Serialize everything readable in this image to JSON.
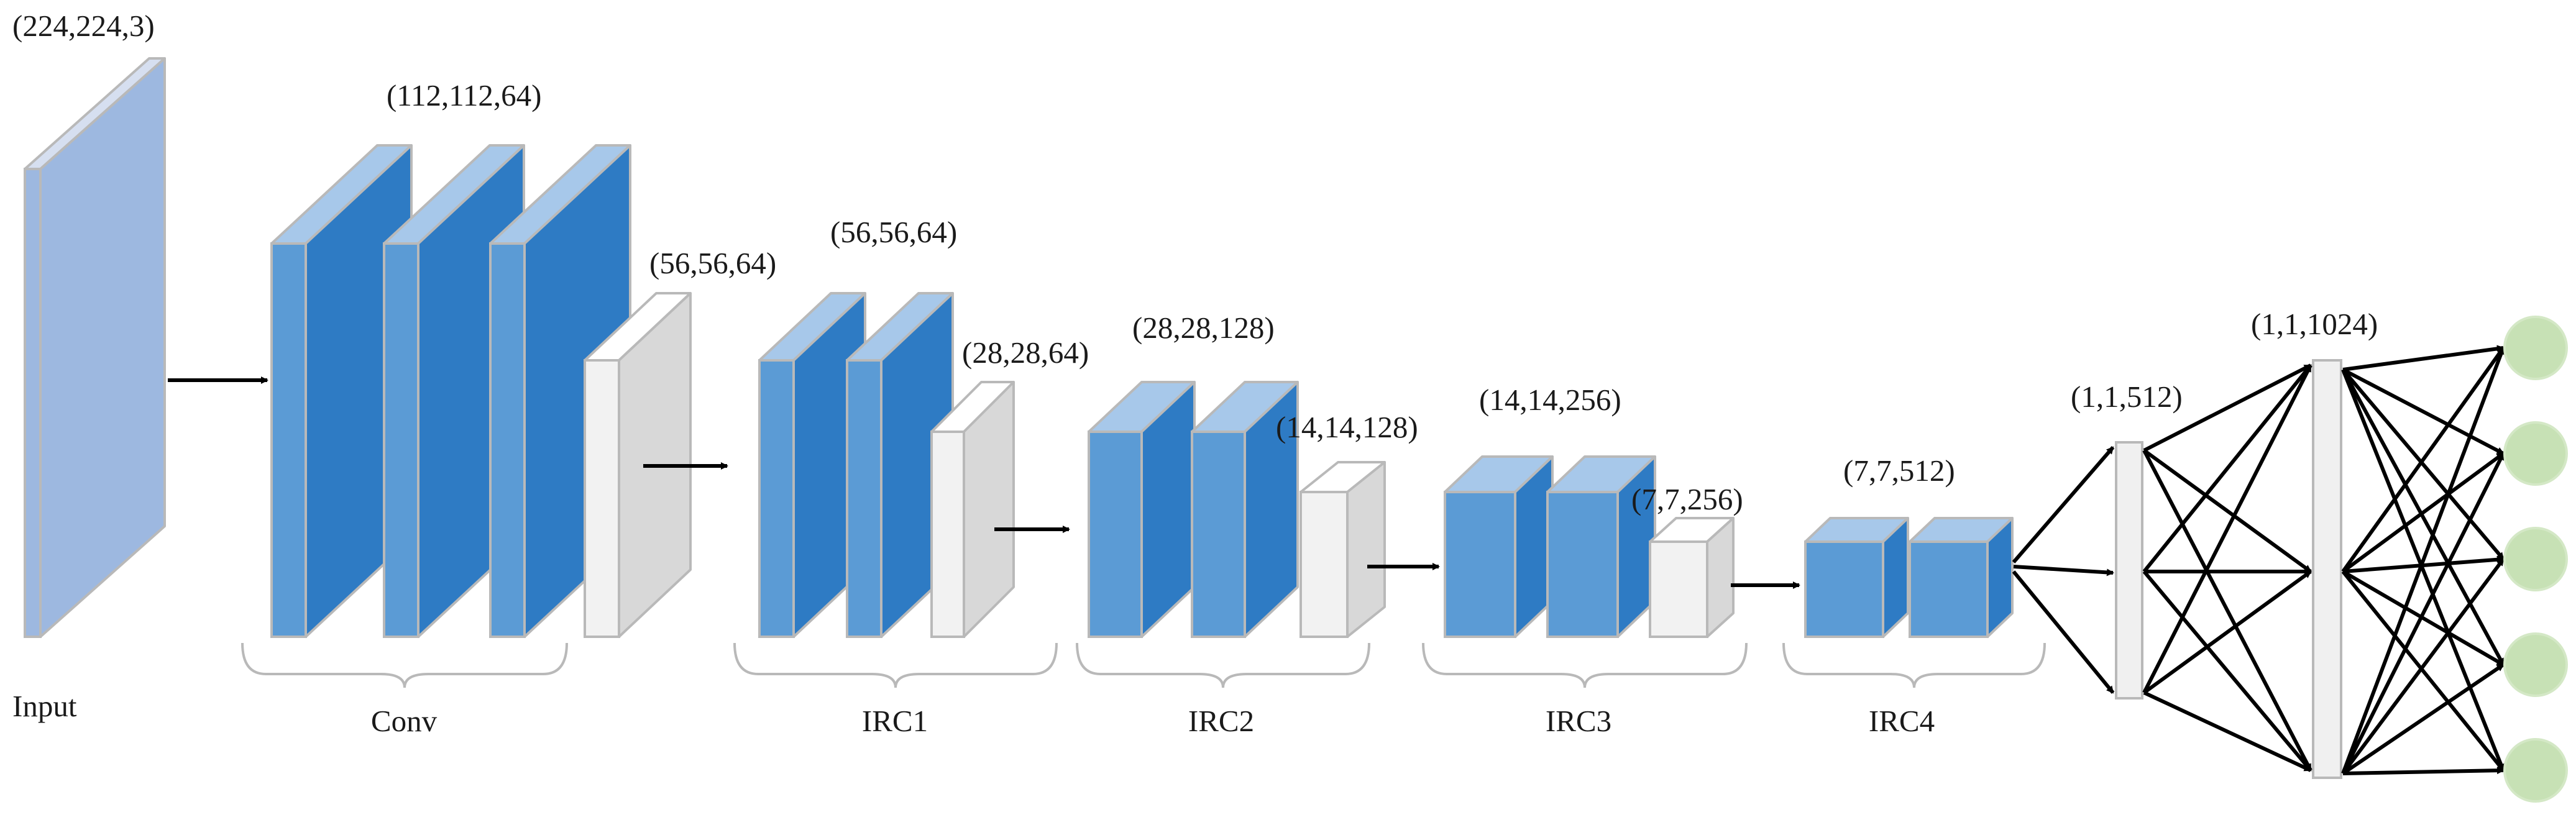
{
  "labels": {
    "input_dims": "(224,224,3)",
    "input": "Input",
    "conv_dims": "(112,112,64)",
    "pool_dims": "(56,56,64)",
    "conv": "Conv",
    "irc1_dims": "(56,56,64)",
    "irc1_out_dims": "(28,28,64)",
    "irc1": "IRC1",
    "irc2_dims": "(28,28,128)",
    "irc2_out_dims": "(14,14,128)",
    "irc2": "IRC2",
    "irc3_dims": "(14,14,256)",
    "irc3_out_dims": "(7,7,256)",
    "irc3": "IRC3",
    "irc4_dims": "(7,7,512)",
    "irc4": "IRC4",
    "fc1_dims": "(1,1,512)",
    "fc2_dims": "(1,1,1024)"
  },
  "colors": {
    "input_front": "#9db8e0",
    "conv_front": "#5b9bd5",
    "conv_side": "#2e7bc4",
    "conv_top": "#a7c8ea",
    "pool_front": "#f2f2f2",
    "pool_side": "#d8d8d8",
    "outline": "#b9b9b9",
    "output_node": "#c7e1b5",
    "arrow": "#000000"
  },
  "output_node_count": 5
}
